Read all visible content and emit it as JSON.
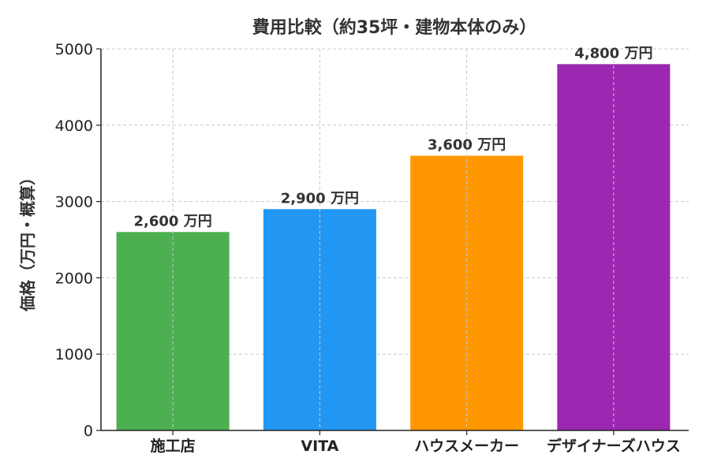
{
  "chart_data": {
    "type": "bar",
    "title": "費用比較（約35坪・建物本体のみ）",
    "xlabel": "",
    "ylabel": "価格（万円・概算）",
    "categories": [
      "施工店",
      "VITA",
      "ハウスメーカー",
      "デザイナーズハウス"
    ],
    "values": [
      2600,
      2900,
      3600,
      4800
    ],
    "data_labels": [
      "2,600 万円",
      "2,900 万円",
      "3,600 万円",
      "4,800 万円"
    ],
    "colors": [
      "#4caf50",
      "#2196f3",
      "#ff9800",
      "#9c27b0"
    ],
    "ylim": [
      0,
      5000
    ],
    "yticks": [
      0,
      1000,
      2000,
      3000,
      4000,
      5000
    ],
    "ytick_labels": [
      "0",
      "1000",
      "2000",
      "3000",
      "4000",
      "5000"
    ],
    "grid": true,
    "grid_style": "dashed",
    "legend": "none"
  }
}
